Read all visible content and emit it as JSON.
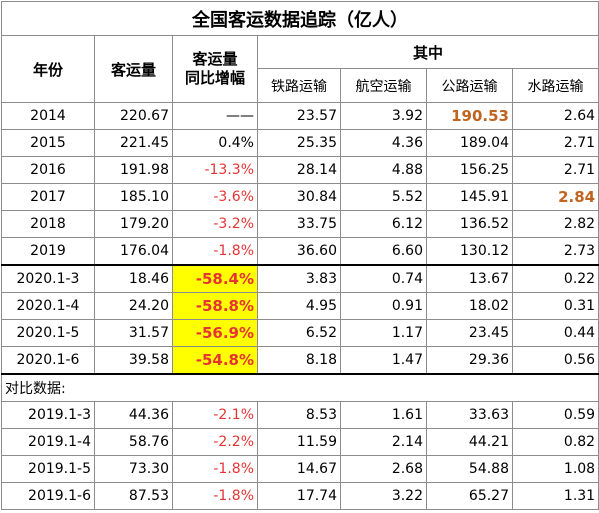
{
  "title": "全国客运数据追踪（亿人）",
  "headers": {
    "year": "年份",
    "volume": "客运量",
    "yoy": "客运量\n同比增幅",
    "group": "其中",
    "rail": "铁路运输",
    "air": "航空运输",
    "road": "公路运输",
    "water": "水路运输"
  },
  "annual_rows": [
    {
      "year": "2014",
      "volume": "220.67",
      "yoy": "——",
      "rail": "23.57",
      "air": "3.92",
      "road": "190.53",
      "water": "2.64"
    },
    {
      "year": "2015",
      "volume": "221.45",
      "yoy": "0.4%",
      "rail": "25.35",
      "air": "4.36",
      "road": "189.04",
      "water": "2.71"
    },
    {
      "year": "2016",
      "volume": "191.98",
      "yoy": "-13.3%",
      "rail": "28.14",
      "air": "4.88",
      "road": "156.25",
      "water": "2.71"
    },
    {
      "year": "2017",
      "volume": "185.10",
      "yoy": "-3.6%",
      "rail": "30.84",
      "air": "5.52",
      "road": "145.91",
      "water": "2.84"
    },
    {
      "year": "2018",
      "volume": "179.20",
      "yoy": "-3.2%",
      "rail": "33.75",
      "air": "6.12",
      "road": "136.52",
      "water": "2.82"
    },
    {
      "year": "2019",
      "volume": "176.04",
      "yoy": "-1.8%",
      "rail": "36.60",
      "air": "6.60",
      "road": "130.12",
      "water": "2.73"
    }
  ],
  "ytd_2020_rows": [
    {
      "year": "2020.1-3",
      "volume": "18.46",
      "yoy": "-58.4%",
      "rail": "3.83",
      "air": "0.74",
      "road": "13.67",
      "water": "0.22"
    },
    {
      "year": "2020.1-4",
      "volume": "24.20",
      "yoy": "-58.8%",
      "rail": "4.95",
      "air": "0.91",
      "road": "18.02",
      "water": "0.31"
    },
    {
      "year": "2020.1-5",
      "volume": "31.57",
      "yoy": "-56.9%",
      "rail": "6.52",
      "air": "1.17",
      "road": "23.45",
      "water": "0.44"
    },
    {
      "year": "2020.1-6",
      "volume": "39.58",
      "yoy": "-54.8%",
      "rail": "8.18",
      "air": "1.47",
      "road": "29.36",
      "water": "0.56"
    }
  ],
  "compare_label": "对比数据:",
  "ytd_2019_rows": [
    {
      "year": "2019.1-3",
      "volume": "44.36",
      "yoy": "-2.1%",
      "rail": "8.53",
      "air": "1.61",
      "road": "33.63",
      "water": "0.59"
    },
    {
      "year": "2019.1-4",
      "volume": "58.76",
      "yoy": "-2.2%",
      "rail": "11.59",
      "air": "2.14",
      "road": "44.21",
      "water": "0.82"
    },
    {
      "year": "2019.1-5",
      "volume": "73.30",
      "yoy": "-1.8%",
      "rail": "14.67",
      "air": "2.68",
      "road": "54.88",
      "water": "1.08"
    },
    {
      "year": "2019.1-6",
      "volume": "87.53",
      "yoy": "-1.8%",
      "rail": "17.74",
      "air": "3.22",
      "road": "65.27",
      "water": "1.31"
    }
  ],
  "colors": {
    "negative_text": "#e63434",
    "highlight_fill": "#ffff00",
    "max_value_text": "#c0651f"
  }
}
